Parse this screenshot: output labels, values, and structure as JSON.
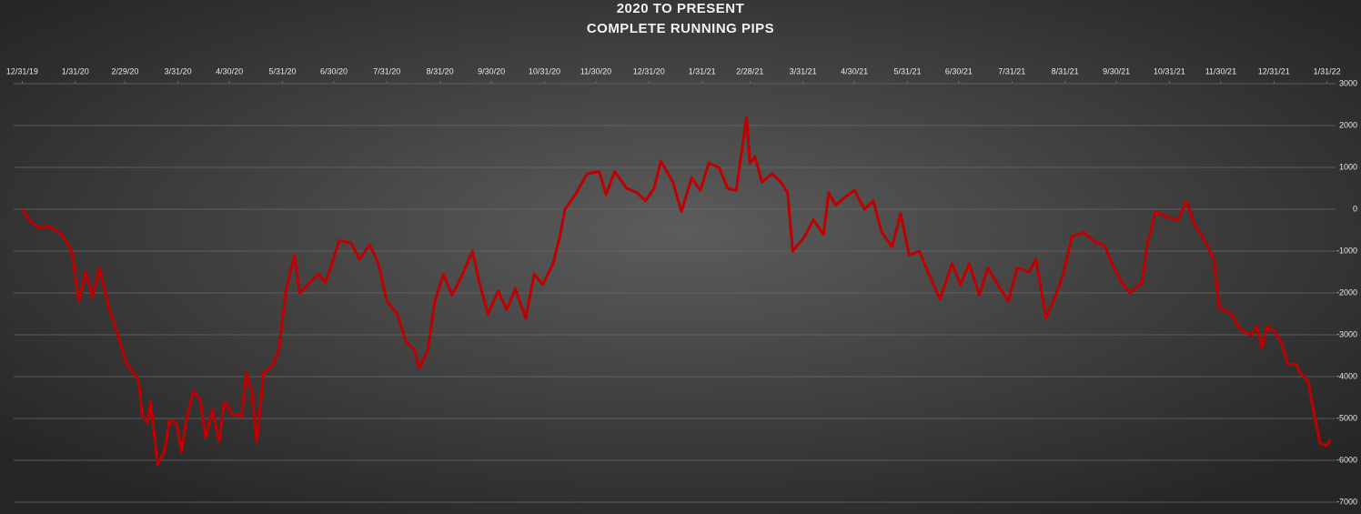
{
  "chart_data": {
    "type": "line",
    "title": "2020 TO PRESENT",
    "subtitle": "COMPLETE RUNNING PIPS",
    "x": [
      "2019-12-31",
      "2020-01-05",
      "2020-01-10",
      "2020-01-15",
      "2020-01-23",
      "2020-01-29",
      "2020-02-02",
      "2020-02-06",
      "2020-02-10",
      "2020-02-14",
      "2020-02-17",
      "2020-02-20",
      "2020-02-24",
      "2020-03-01",
      "2020-03-05",
      "2020-03-08",
      "2020-03-10",
      "2020-03-13",
      "2020-03-15",
      "2020-03-19",
      "2020-03-23",
      "2020-03-26",
      "2020-03-30",
      "2020-04-02",
      "2020-04-05",
      "2020-04-09",
      "2020-04-13",
      "2020-04-16",
      "2020-04-20",
      "2020-04-24",
      "2020-04-27",
      "2020-05-02",
      "2020-05-07",
      "2020-05-10",
      "2020-05-13",
      "2020-05-16",
      "2020-05-20",
      "2020-05-25",
      "2020-05-29",
      "2020-06-02",
      "2020-06-07",
      "2020-06-10",
      "2020-06-16",
      "2020-06-21",
      "2020-06-25",
      "2020-06-29",
      "2020-07-03",
      "2020-07-10",
      "2020-07-15",
      "2020-07-21",
      "2020-07-26",
      "2020-07-31",
      "2020-08-06",
      "2020-08-11",
      "2020-08-16",
      "2020-08-19",
      "2020-08-24",
      "2020-08-28",
      "2020-09-02",
      "2020-09-07",
      "2020-09-12",
      "2020-09-19",
      "2020-09-23",
      "2020-09-28",
      "2020-10-04",
      "2020-10-09",
      "2020-10-14",
      "2020-10-20",
      "2020-10-25",
      "2020-10-30",
      "2020-11-05",
      "2020-11-09",
      "2020-11-12",
      "2020-11-18",
      "2020-11-25",
      "2020-12-02",
      "2020-12-06",
      "2020-12-11",
      "2020-12-18",
      "2020-12-24",
      "2020-12-29",
      "2021-01-03",
      "2021-01-07",
      "2021-01-14",
      "2021-01-19",
      "2021-01-25",
      "2021-01-30",
      "2021-02-04",
      "2021-02-10",
      "2021-02-15",
      "2021-02-20",
      "2021-02-26",
      "2021-02-28",
      "2021-03-03",
      "2021-03-07",
      "2021-03-13",
      "2021-03-18",
      "2021-03-22",
      "2021-03-25",
      "2021-04-01",
      "2021-04-06",
      "2021-04-12",
      "2021-04-15",
      "2021-04-19",
      "2021-04-25",
      "2021-04-30",
      "2021-05-06",
      "2021-05-11",
      "2021-05-16",
      "2021-05-22",
      "2021-05-27",
      "2021-06-01",
      "2021-06-07",
      "2021-06-12",
      "2021-06-19",
      "2021-06-26",
      "2021-07-01",
      "2021-07-06",
      "2021-07-12",
      "2021-07-17",
      "2021-07-22",
      "2021-07-29",
      "2021-08-03",
      "2021-08-10",
      "2021-08-14",
      "2021-08-20",
      "2021-08-26",
      "2021-08-30",
      "2021-09-04",
      "2021-09-11",
      "2021-09-18",
      "2021-09-23",
      "2021-09-27",
      "2021-10-03",
      "2021-10-08",
      "2021-10-15",
      "2021-10-18",
      "2021-10-23",
      "2021-10-30",
      "2021-11-05",
      "2021-11-10",
      "2021-11-15",
      "2021-11-20",
      "2021-11-26",
      "2021-11-29",
      "2021-12-06",
      "2021-12-12",
      "2021-12-18",
      "2021-12-21",
      "2021-12-24",
      "2021-12-27",
      "2022-01-01",
      "2022-01-05",
      "2022-01-08",
      "2022-01-13",
      "2022-01-15",
      "2022-01-20",
      "2022-01-23",
      "2022-01-27",
      "2022-01-31",
      "2022-02-02"
    ],
    "series": [
      {
        "name": "Running pips",
        "color": "#c00000",
        "values": [
          0,
          -300,
          -450,
          -400,
          -600,
          -1000,
          -2200,
          -1500,
          -2100,
          -1400,
          -1900,
          -2400,
          -2900,
          -3700,
          -3900,
          -4100,
          -4900,
          -5100,
          -4600,
          -6100,
          -5800,
          -5050,
          -5100,
          -5800,
          -5000,
          -4350,
          -4550,
          -5450,
          -4800,
          -5550,
          -4600,
          -4900,
          -4950,
          -3900,
          -4350,
          -5550,
          -3900,
          -3750,
          -3350,
          -1950,
          -1100,
          -2000,
          -1750,
          -1550,
          -1750,
          -1300,
          -750,
          -800,
          -1200,
          -850,
          -1300,
          -2200,
          -2500,
          -3150,
          -3350,
          -3800,
          -3350,
          -2200,
          -1550,
          -2050,
          -1650,
          -1000,
          -1750,
          -2500,
          -1950,
          -2400,
          -1900,
          -2600,
          -1550,
          -1800,
          -1300,
          -650,
          0,
          350,
          850,
          900,
          350,
          900,
          500,
          400,
          200,
          500,
          1150,
          650,
          -50,
          750,
          450,
          1100,
          1000,
          500,
          450,
          2200,
          1100,
          1250,
          650,
          850,
          650,
          400,
          -1000,
          -650,
          -250,
          -600,
          400,
          100,
          300,
          450,
          0,
          200,
          -550,
          -900,
          -100,
          -1100,
          -1000,
          -1500,
          -2150,
          -1300,
          -1800,
          -1300,
          -2050,
          -1400,
          -1750,
          -2200,
          -1400,
          -1500,
          -1200,
          -2600,
          -2000,
          -1550,
          -650,
          -550,
          -800,
          -850,
          -1250,
          -1750,
          -2000,
          -1750,
          -850,
          -50,
          -200,
          -250,
          200,
          -400,
          -700,
          -1200,
          -2350,
          -2500,
          -2900,
          -3000,
          -2800,
          -3300,
          -2800,
          -2950,
          -3250,
          -3700,
          -3700,
          -3900,
          -4100,
          -4800,
          -5600,
          -5650,
          -5500
        ]
      }
    ],
    "xlim": [
      "2019-12-26",
      "2022-02-05"
    ],
    "xticks": [
      {
        "value": "2019-12-31",
        "label": "12/31/19"
      },
      {
        "value": "2020-01-31",
        "label": "1/31/20"
      },
      {
        "value": "2020-02-29",
        "label": "2/29/20"
      },
      {
        "value": "2020-03-31",
        "label": "3/31/20"
      },
      {
        "value": "2020-04-30",
        "label": "4/30/20"
      },
      {
        "value": "2020-05-31",
        "label": "5/31/20"
      },
      {
        "value": "2020-06-30",
        "label": "6/30/20"
      },
      {
        "value": "2020-07-31",
        "label": "7/31/20"
      },
      {
        "value": "2020-08-31",
        "label": "8/31/20"
      },
      {
        "value": "2020-09-30",
        "label": "9/30/20"
      },
      {
        "value": "2020-10-31",
        "label": "10/31/20"
      },
      {
        "value": "2020-11-30",
        "label": "11/30/20"
      },
      {
        "value": "2020-12-31",
        "label": "12/31/20"
      },
      {
        "value": "2021-01-31",
        "label": "1/31/21"
      },
      {
        "value": "2021-02-28",
        "label": "2/28/21"
      },
      {
        "value": "2021-03-31",
        "label": "3/31/21"
      },
      {
        "value": "2021-04-30",
        "label": "4/30/21"
      },
      {
        "value": "2021-05-31",
        "label": "5/31/21"
      },
      {
        "value": "2021-06-30",
        "label": "6/30/21"
      },
      {
        "value": "2021-07-31",
        "label": "7/31/21"
      },
      {
        "value": "2021-08-31",
        "label": "8/31/21"
      },
      {
        "value": "2021-09-30",
        "label": "9/30/21"
      },
      {
        "value": "2021-10-31",
        "label": "10/31/21"
      },
      {
        "value": "2021-11-30",
        "label": "11/30/21"
      },
      {
        "value": "2021-12-31",
        "label": "12/31/21"
      },
      {
        "value": "2022-01-31",
        "label": "1/31/22"
      }
    ],
    "ylim": [
      -7000,
      3000
    ],
    "yticks": [
      -7000,
      -6000,
      -5000,
      -4000,
      -3000,
      -2000,
      -1000,
      0,
      1000,
      2000,
      3000
    ],
    "grid": true
  }
}
